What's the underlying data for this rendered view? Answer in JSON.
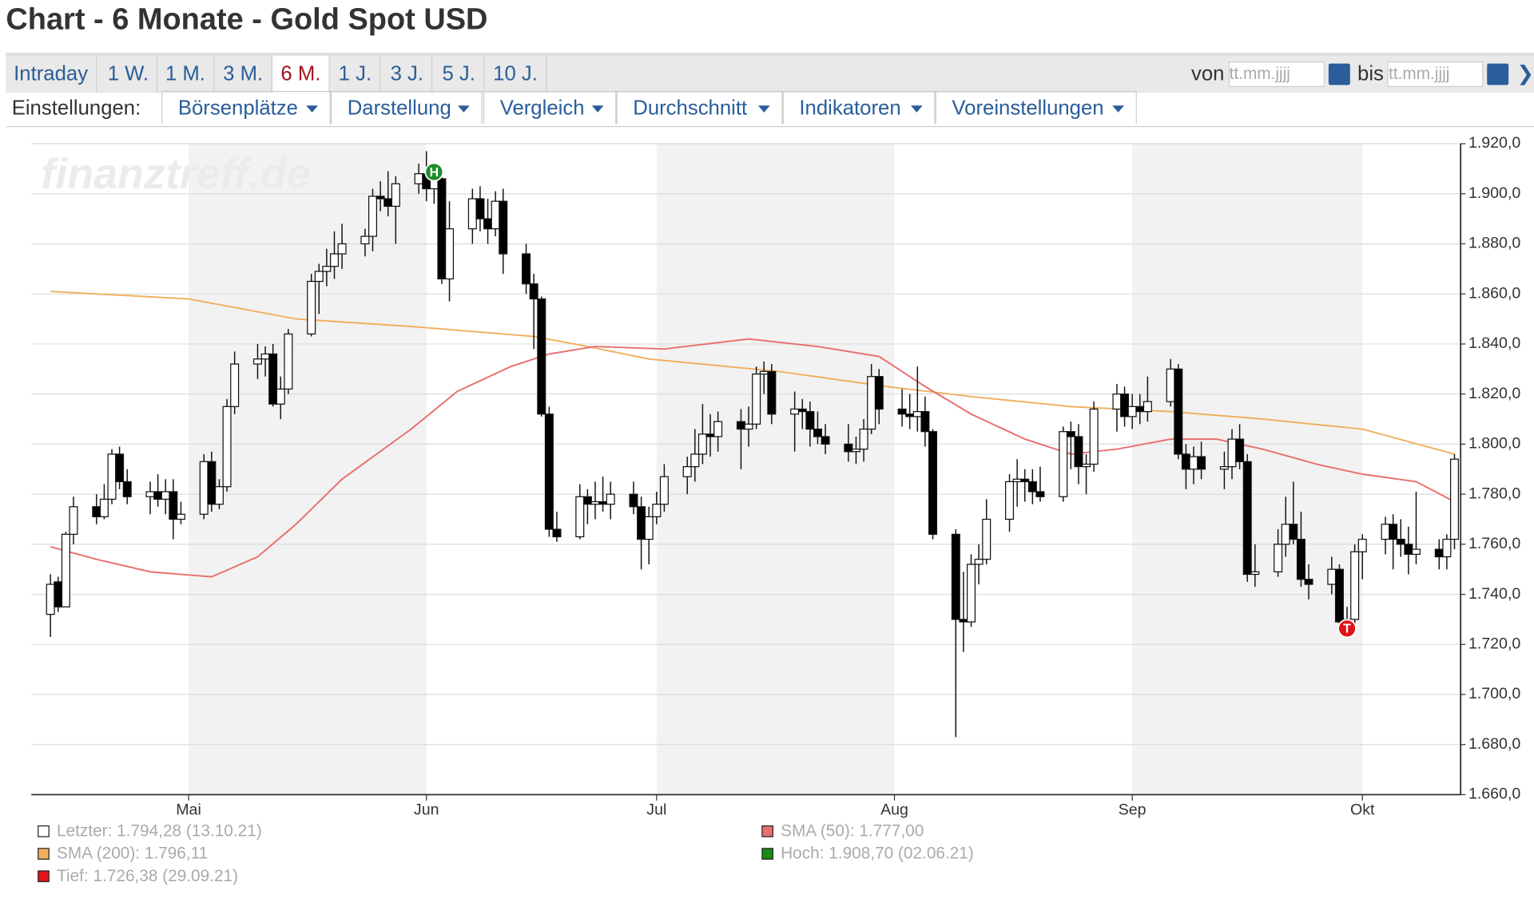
{
  "header": {
    "title": "Chart - 6 Monate - Gold Spot USD",
    "tabs": [
      "Intraday",
      "1 W.",
      "1 M.",
      "3 M.",
      "6 M.",
      "1 J.",
      "3 J.",
      "5 J.",
      "10 J."
    ],
    "active_tab": 4,
    "from_label": "von",
    "to_label": "bis",
    "date_placeholder": "tt.mm.jjjj"
  },
  "settings": {
    "label": "Einstellungen:",
    "menus": [
      "Börsenplätze",
      "Darstellung",
      "Vergleich",
      "Durchschnitt",
      "Indikatoren",
      "Voreinstellungen"
    ]
  },
  "chart_data": {
    "type": "candlestick",
    "watermark": "finanztreff.de",
    "x": [
      103,
      104,
      105,
      106,
      109,
      110,
      111,
      112,
      113,
      116,
      117,
      118,
      119,
      120,
      123,
      124,
      125,
      126,
      127,
      130,
      131,
      132,
      133,
      134,
      137,
      138,
      139,
      140,
      141,
      144,
      145,
      146,
      147,
      148,
      151,
      152,
      153,
      154,
      155,
      158,
      159,
      160,
      161,
      162,
      165,
      166,
      167,
      168,
      169,
      172,
      173,
      174,
      175,
      176,
      179,
      180,
      181,
      182,
      183,
      186,
      187,
      188,
      189,
      190,
      193,
      194,
      195,
      196,
      197,
      200,
      201,
      202,
      203,
      204,
      207,
      208,
      209,
      210,
      211,
      214,
      215,
      216,
      217,
      218,
      221,
      222,
      223,
      224,
      225,
      228,
      229,
      230,
      231,
      232,
      235,
      236,
      237,
      238,
      239,
      242,
      243,
      244,
      245,
      246,
      249,
      250,
      251,
      252,
      253,
      256,
      257,
      258,
      259,
      260,
      263,
      264,
      265,
      266,
      267,
      270,
      271,
      272,
      273,
      274,
      277,
      278,
      279,
      280,
      281,
      284,
      285,
      286
    ],
    "ohlc": [
      [
        1732,
        1748,
        1723,
        1744
      ],
      [
        1745,
        1747,
        1733,
        1735
      ],
      [
        1735,
        1765,
        1735,
        1764
      ],
      [
        1764,
        1779,
        1760,
        1775
      ],
      [
        1775,
        1780,
        1768,
        1771
      ],
      [
        1771,
        1784,
        1770,
        1778
      ],
      [
        1778,
        1798,
        1776,
        1796
      ],
      [
        1796,
        1799,
        1782,
        1785
      ],
      [
        1785,
        1790,
        1776,
        1779
      ],
      [
        1779,
        1785,
        1772,
        1781
      ],
      [
        1781,
        1788,
        1775,
        1778
      ],
      [
        1778,
        1786,
        1772,
        1781
      ],
      [
        1781,
        1786,
        1762,
        1770
      ],
      [
        1770,
        1777,
        1768,
        1772
      ],
      [
        1772,
        1796,
        1770,
        1793
      ],
      [
        1793,
        1797,
        1773,
        1776
      ],
      [
        1776,
        1786,
        1774,
        1783
      ],
      [
        1783,
        1818,
        1781,
        1815
      ],
      [
        1815,
        1837,
        1812,
        1832
      ],
      [
        1832,
        1840,
        1826,
        1834
      ],
      [
        1834,
        1839,
        1827,
        1836
      ],
      [
        1836,
        1840,
        1815,
        1816
      ],
      [
        1816,
        1827,
        1810,
        1822
      ],
      [
        1822,
        1846,
        1820,
        1844
      ],
      [
        1844,
        1868,
        1843,
        1865
      ],
      [
        1865,
        1872,
        1852,
        1869
      ],
      [
        1869,
        1878,
        1863,
        1871
      ],
      [
        1871,
        1885,
        1866,
        1876
      ],
      [
        1876,
        1888,
        1870,
        1880
      ],
      [
        1880,
        1886,
        1875,
        1883
      ],
      [
        1883,
        1902,
        1877,
        1899
      ],
      [
        1899,
        1905,
        1893,
        1898
      ],
      [
        1898,
        1909,
        1891,
        1895
      ],
      [
        1895,
        1907,
        1880,
        1904
      ],
      [
        1904,
        1912,
        1900,
        1908
      ],
      [
        1908,
        1917,
        1897,
        1902
      ],
      [
        1902,
        1909,
        1896,
        1906
      ],
      [
        1906,
        1908,
        1864,
        1866
      ],
      [
        1866,
        1897,
        1857,
        1886
      ],
      [
        1886,
        1902,
        1880,
        1898
      ],
      [
        1898,
        1903,
        1885,
        1890
      ],
      [
        1890,
        1898,
        1880,
        1886
      ],
      [
        1886,
        1901,
        1883,
        1897
      ],
      [
        1897,
        1902,
        1868,
        1876
      ],
      [
        1876,
        1880,
        1860,
        1864
      ],
      [
        1864,
        1868,
        1838,
        1858
      ],
      [
        1858,
        1859,
        1811,
        1812
      ],
      [
        1812,
        1815,
        1763,
        1766
      ],
      [
        1766,
        1773,
        1761,
        1763
      ],
      [
        1763,
        1784,
        1762,
        1779
      ],
      [
        1779,
        1782,
        1768,
        1776
      ],
      [
        1776,
        1785,
        1770,
        1777
      ],
      [
        1777,
        1787,
        1773,
        1776
      ],
      [
        1776,
        1785,
        1770,
        1780
      ],
      [
        1780,
        1785,
        1772,
        1775
      ],
      [
        1775,
        1779,
        1750,
        1762
      ],
      [
        1762,
        1775,
        1752,
        1771
      ],
      [
        1771,
        1781,
        1768,
        1776
      ],
      [
        1776,
        1792,
        1773,
        1787
      ],
      [
        1787,
        1795,
        1780,
        1791
      ],
      [
        1791,
        1806,
        1785,
        1796
      ],
      [
        1796,
        1816,
        1792,
        1804
      ],
      [
        1804,
        1812,
        1795,
        1803
      ],
      [
        1803,
        1813,
        1797,
        1809
      ],
      [
        1809,
        1814,
        1790,
        1806
      ],
      [
        1806,
        1815,
        1799,
        1808
      ],
      [
        1808,
        1831,
        1806,
        1828
      ],
      [
        1828,
        1833,
        1820,
        1829
      ],
      [
        1829,
        1832,
        1808,
        1812
      ],
      [
        1812,
        1821,
        1797,
        1814
      ],
      [
        1814,
        1818,
        1806,
        1813
      ],
      [
        1813,
        1817,
        1799,
        1806
      ],
      [
        1806,
        1813,
        1800,
        1803
      ],
      [
        1803,
        1808,
        1796,
        1800
      ],
      [
        1800,
        1808,
        1793,
        1797
      ],
      [
        1797,
        1803,
        1792,
        1798
      ],
      [
        1798,
        1810,
        1793,
        1806
      ],
      [
        1806,
        1832,
        1804,
        1827
      ],
      [
        1827,
        1830,
        1808,
        1814
      ],
      [
        1814,
        1822,
        1807,
        1812
      ],
      [
        1812,
        1820,
        1806,
        1811
      ],
      [
        1811,
        1831,
        1805,
        1813
      ],
      [
        1813,
        1819,
        1799,
        1805
      ],
      [
        1805,
        1806,
        1762,
        1764
      ],
      [
        1764,
        1766,
        1683,
        1730
      ],
      [
        1730,
        1749,
        1717,
        1729
      ],
      [
        1729,
        1756,
        1727,
        1752
      ],
      [
        1752,
        1760,
        1744,
        1754
      ],
      [
        1754,
        1778,
        1752,
        1770
      ],
      [
        1770,
        1788,
        1765,
        1785
      ],
      [
        1785,
        1794,
        1775,
        1786
      ],
      [
        1786,
        1790,
        1777,
        1785
      ],
      [
        1785,
        1790,
        1776,
        1781
      ],
      [
        1781,
        1791,
        1777,
        1779
      ],
      [
        1779,
        1807,
        1777,
        1805
      ],
      [
        1805,
        1809,
        1790,
        1803
      ],
      [
        1803,
        1808,
        1784,
        1791
      ],
      [
        1791,
        1796,
        1780,
        1792
      ],
      [
        1792,
        1817,
        1789,
        1814
      ],
      [
        1814,
        1824,
        1805,
        1820
      ],
      [
        1820,
        1823,
        1807,
        1811
      ],
      [
        1811,
        1820,
        1806,
        1815
      ],
      [
        1815,
        1820,
        1808,
        1813
      ],
      [
        1813,
        1827,
        1809,
        1817
      ],
      [
        1817,
        1834,
        1815,
        1830
      ],
      [
        1830,
        1832,
        1794,
        1796
      ],
      [
        1796,
        1800,
        1782,
        1790
      ],
      [
        1790,
        1799,
        1784,
        1795
      ],
      [
        1795,
        1801,
        1786,
        1790
      ],
      [
        1790,
        1797,
        1782,
        1791
      ],
      [
        1791,
        1806,
        1786,
        1802
      ],
      [
        1802,
        1808,
        1790,
        1793
      ],
      [
        1793,
        1796,
        1745,
        1748
      ],
      [
        1748,
        1760,
        1743,
        1749
      ],
      [
        1749,
        1766,
        1747,
        1760
      ],
      [
        1760,
        1779,
        1755,
        1768
      ],
      [
        1768,
        1785,
        1760,
        1762
      ],
      [
        1762,
        1773,
        1743,
        1746
      ],
      [
        1746,
        1752,
        1738,
        1744
      ],
      [
        1744,
        1755,
        1740,
        1750
      ],
      [
        1750,
        1752,
        1728,
        1729
      ],
      [
        1729,
        1735,
        1726,
        1730
      ],
      [
        1730,
        1760,
        1728,
        1757
      ],
      [
        1757,
        1764,
        1746,
        1762
      ],
      [
        1762,
        1771,
        1756,
        1768
      ],
      [
        1768,
        1772,
        1750,
        1762
      ],
      [
        1762,
        1770,
        1755,
        1760
      ],
      [
        1760,
        1767,
        1748,
        1756
      ],
      [
        1756,
        1781,
        1752,
        1758
      ],
      [
        1758,
        1762,
        1750,
        1755
      ],
      [
        1755,
        1764,
        1750,
        1762
      ],
      [
        1762,
        1796,
        1758,
        1794
      ]
    ],
    "lines": [
      {
        "name": "SMA (200)",
        "color": "#f0b060",
        "x": [
          103,
          121,
          135,
          150,
          166,
          173,
          181,
          198,
          212,
          223,
          236,
          249,
          261,
          274,
          286
        ],
        "values": [
          1861,
          1858,
          1850,
          1847,
          1843,
          1839,
          1834,
          1829,
          1823,
          1819,
          1815,
          1813,
          1810,
          1806,
          1796
        ]
      },
      {
        "name": "SMA (50)",
        "color": "#e87070",
        "x": [
          103,
          109,
          116,
          124,
          130,
          135,
          141,
          150,
          156,
          163,
          168,
          174,
          183,
          194,
          203,
          211,
          217,
          223,
          230,
          236,
          242,
          249,
          255,
          261,
          268,
          274,
          281,
          286
        ],
        "values": [
          1759,
          1754,
          1749,
          1747,
          1755,
          1768,
          1786,
          1806,
          1821,
          1831,
          1836,
          1839,
          1838,
          1842,
          1839,
          1835,
          1823,
          1812,
          1802,
          1796,
          1798,
          1802,
          1802,
          1798,
          1792,
          1788,
          1785,
          1777
        ]
      }
    ],
    "markers": [
      {
        "label": "H",
        "x": 153,
        "value": 1908.7,
        "color": "#1e8c2c"
      },
      {
        "label": "T",
        "x": 272,
        "value": 1726.38,
        "color": "#e0141c"
      }
    ],
    "legend": [
      {
        "label": "Letzter: 1.794,28 (13.10.21)",
        "color": "#ffffff"
      },
      {
        "label": "SMA (50): 1.777,00",
        "color": "#e87070"
      },
      {
        "label": "SMA (200): 1.796,11",
        "color": "#f0b060"
      },
      {
        "label": "Hoch: 1.908,70 (02.06.21)",
        "color": "#1a8a1a"
      },
      {
        "label": "Tief: 1.726,38 (29.09.21)",
        "color": "#e0141c"
      }
    ],
    "xlim": [
      100.5,
      286.8
    ],
    "xticks": [
      {
        "value": 121,
        "label": "Mai"
      },
      {
        "value": 152,
        "label": "Jun"
      },
      {
        "value": 182,
        "label": "Jul"
      },
      {
        "value": 213,
        "label": "Aug"
      },
      {
        "value": 244,
        "label": "Sep"
      },
      {
        "value": 274,
        "label": "Okt"
      }
    ],
    "ylim": [
      1660,
      1920
    ],
    "yticks": [
      {
        "value": 1660,
        "label": "1.660,0"
      },
      {
        "value": 1680,
        "label": "1.680,0"
      },
      {
        "value": 1700,
        "label": "1.700,0"
      },
      {
        "value": 1720,
        "label": "1.720,0"
      },
      {
        "value": 1740,
        "label": "1.740,0"
      },
      {
        "value": 1760,
        "label": "1.760,0"
      },
      {
        "value": 1780,
        "label": "1.780,0"
      },
      {
        "value": 1800,
        "label": "1.800,0"
      },
      {
        "value": 1820,
        "label": "1.820,0"
      },
      {
        "value": 1840,
        "label": "1.840,0"
      },
      {
        "value": 1860,
        "label": "1.860,0"
      },
      {
        "value": 1880,
        "label": "1.880,0"
      },
      {
        "value": 1900,
        "label": "1.900,0"
      },
      {
        "value": 1920,
        "label": "1.920,0"
      }
    ],
    "grid": true,
    "shaded_months": true
  }
}
